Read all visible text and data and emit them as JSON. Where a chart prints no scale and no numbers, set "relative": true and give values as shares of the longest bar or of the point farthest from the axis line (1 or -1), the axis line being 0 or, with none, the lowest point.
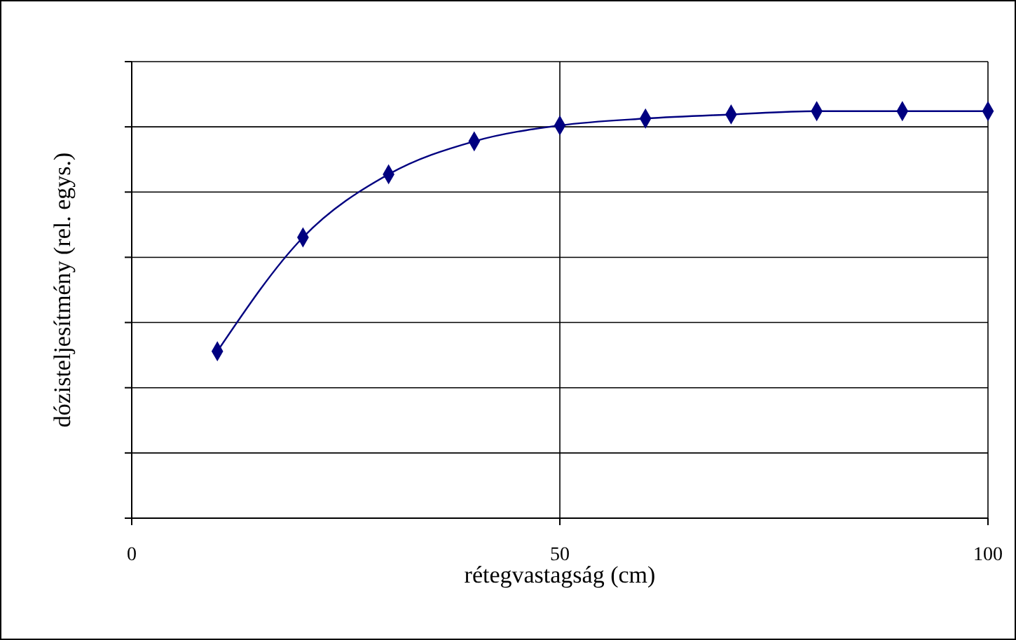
{
  "chart_data": {
    "type": "line",
    "xlabel": "rétegvastagság (cm)",
    "ylabel": "dózisteljesítmény (rel. egys.)",
    "relative": true,
    "x": [
      10,
      20,
      30,
      40,
      50,
      60,
      70,
      80,
      90,
      100
    ],
    "values": [
      0.41,
      0.69,
      0.845,
      0.926,
      0.965,
      0.982,
      0.992,
      1,
      1,
      1
    ],
    "color": "#000080",
    "marker": "diamond",
    "xlim": [
      0,
      100
    ],
    "xticks": [
      0,
      50,
      100
    ],
    "grid": true
  }
}
